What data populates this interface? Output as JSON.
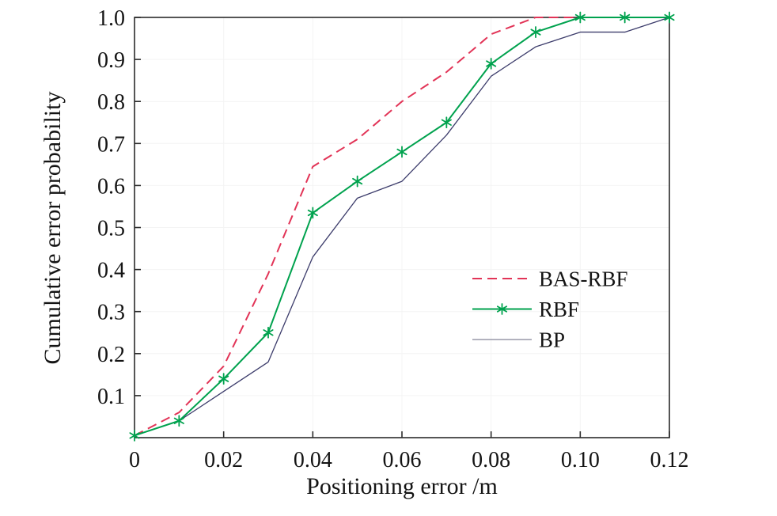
{
  "figure": {
    "background": "#ffffff",
    "axis_color": "#2b2b2b",
    "grid_color": "#f4f4f4",
    "tick_label_color": "#141414"
  },
  "chart_data": {
    "type": "line",
    "title": "",
    "xlabel": "Positioning error /m",
    "ylabel": "Cumulative error probability",
    "xlim": [
      0,
      0.12
    ],
    "ylim": [
      0,
      1
    ],
    "grid": "faint",
    "legend_position": "inside-right",
    "xticks": [
      0,
      0.02,
      0.04,
      0.06,
      0.08,
      0.1,
      0.12
    ],
    "xtick_labels": [
      "0",
      "0.02",
      "0.04",
      "0.06",
      "0.08",
      "0.10",
      "0.12"
    ],
    "yticks": [
      0.1,
      0.2,
      0.3,
      0.4,
      0.5,
      0.6,
      0.7,
      0.8,
      0.9,
      1.0
    ],
    "ytick_labels": [
      "0.1",
      "0.2",
      "0.3",
      "0.4",
      "0.5",
      "0.6",
      "0.7",
      "0.8",
      "0.9",
      "1.0"
    ],
    "x": [
      0,
      0.01,
      0.02,
      0.03,
      0.04,
      0.05,
      0.06,
      0.07,
      0.08,
      0.09,
      0.1,
      0.11,
      0.12
    ],
    "series": [
      {
        "name": "BAS-RBF",
        "color": "#e23457",
        "line_style": "dashed",
        "line_width": 2,
        "marker": "none",
        "values": [
          0.005,
          0.06,
          0.17,
          0.39,
          0.645,
          0.71,
          0.8,
          0.87,
          0.96,
          1,
          1,
          1,
          1
        ]
      },
      {
        "name": "RBF",
        "color": "#00a24e",
        "line_style": "solid",
        "line_width": 2,
        "marker": "asterisk",
        "values": [
          0.005,
          0.04,
          0.14,
          0.25,
          0.535,
          0.61,
          0.68,
          0.75,
          0.89,
          0.965,
          1,
          1,
          1
        ]
      },
      {
        "name": "BP",
        "color": "#3c3c6b",
        "legend_color": "#9898a8",
        "line_style": "solid",
        "line_width": 1.3,
        "marker": "none",
        "values": [
          0.005,
          0.04,
          0.11,
          0.18,
          0.43,
          0.57,
          0.61,
          0.72,
          0.86,
          0.93,
          0.965,
          0.965,
          1
        ]
      }
    ]
  }
}
